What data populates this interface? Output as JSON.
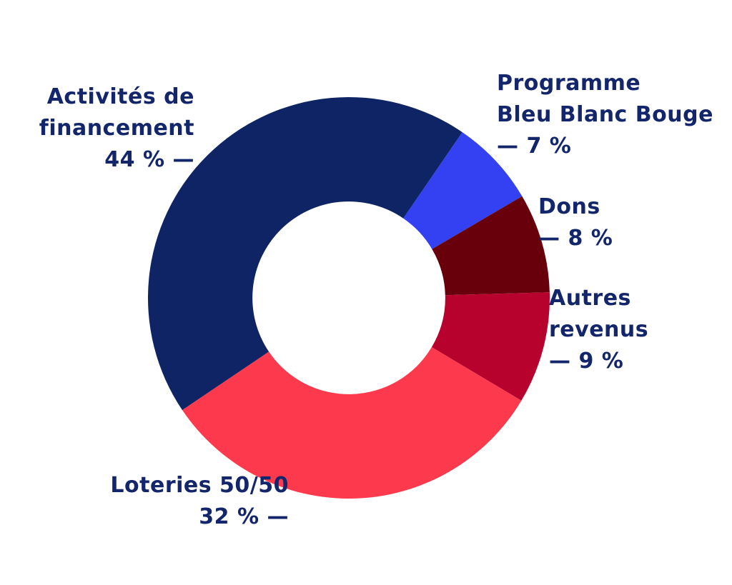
{
  "chart_data": {
    "type": "pie",
    "subtype": "donut",
    "title": "",
    "unit": "%",
    "categories": [
      "Activités de financement",
      "Programme Bleu Blanc Bouge",
      "Dons",
      "Autres revenus",
      "Loteries 50/50"
    ],
    "values": [
      44,
      7,
      8,
      9,
      32
    ],
    "colors": [
      "#0E2464",
      "#3441F2",
      "#67000A",
      "#B8022E",
      "#FD3A4D"
    ],
    "start_angle_clockwise_from_top_deg": 236,
    "inner_radius_ratio": 0.48,
    "legend_position": "callout-labels-around-donut",
    "background_color": "#FFFFFF",
    "label_color": "#14266B"
  },
  "callouts": [
    {
      "name": "activites-de-financement",
      "align": "right",
      "lines": [
        "Activités de",
        "financement",
        "44 % —"
      ]
    },
    {
      "name": "programme-bleu-blanc-bouge",
      "align": "left",
      "lines": [
        "Programme",
        "Bleu Blanc Bouge",
        "— 7 %"
      ]
    },
    {
      "name": "dons",
      "align": "left",
      "lines": [
        "Dons",
        "— 8 %"
      ]
    },
    {
      "name": "autres-revenus",
      "align": "left",
      "lines": [
        "Autres",
        "revenus",
        "— 9 %"
      ]
    },
    {
      "name": "loteries-50-50",
      "align": "right",
      "lines": [
        "Loteries 50/50",
        "32 % —"
      ]
    }
  ]
}
